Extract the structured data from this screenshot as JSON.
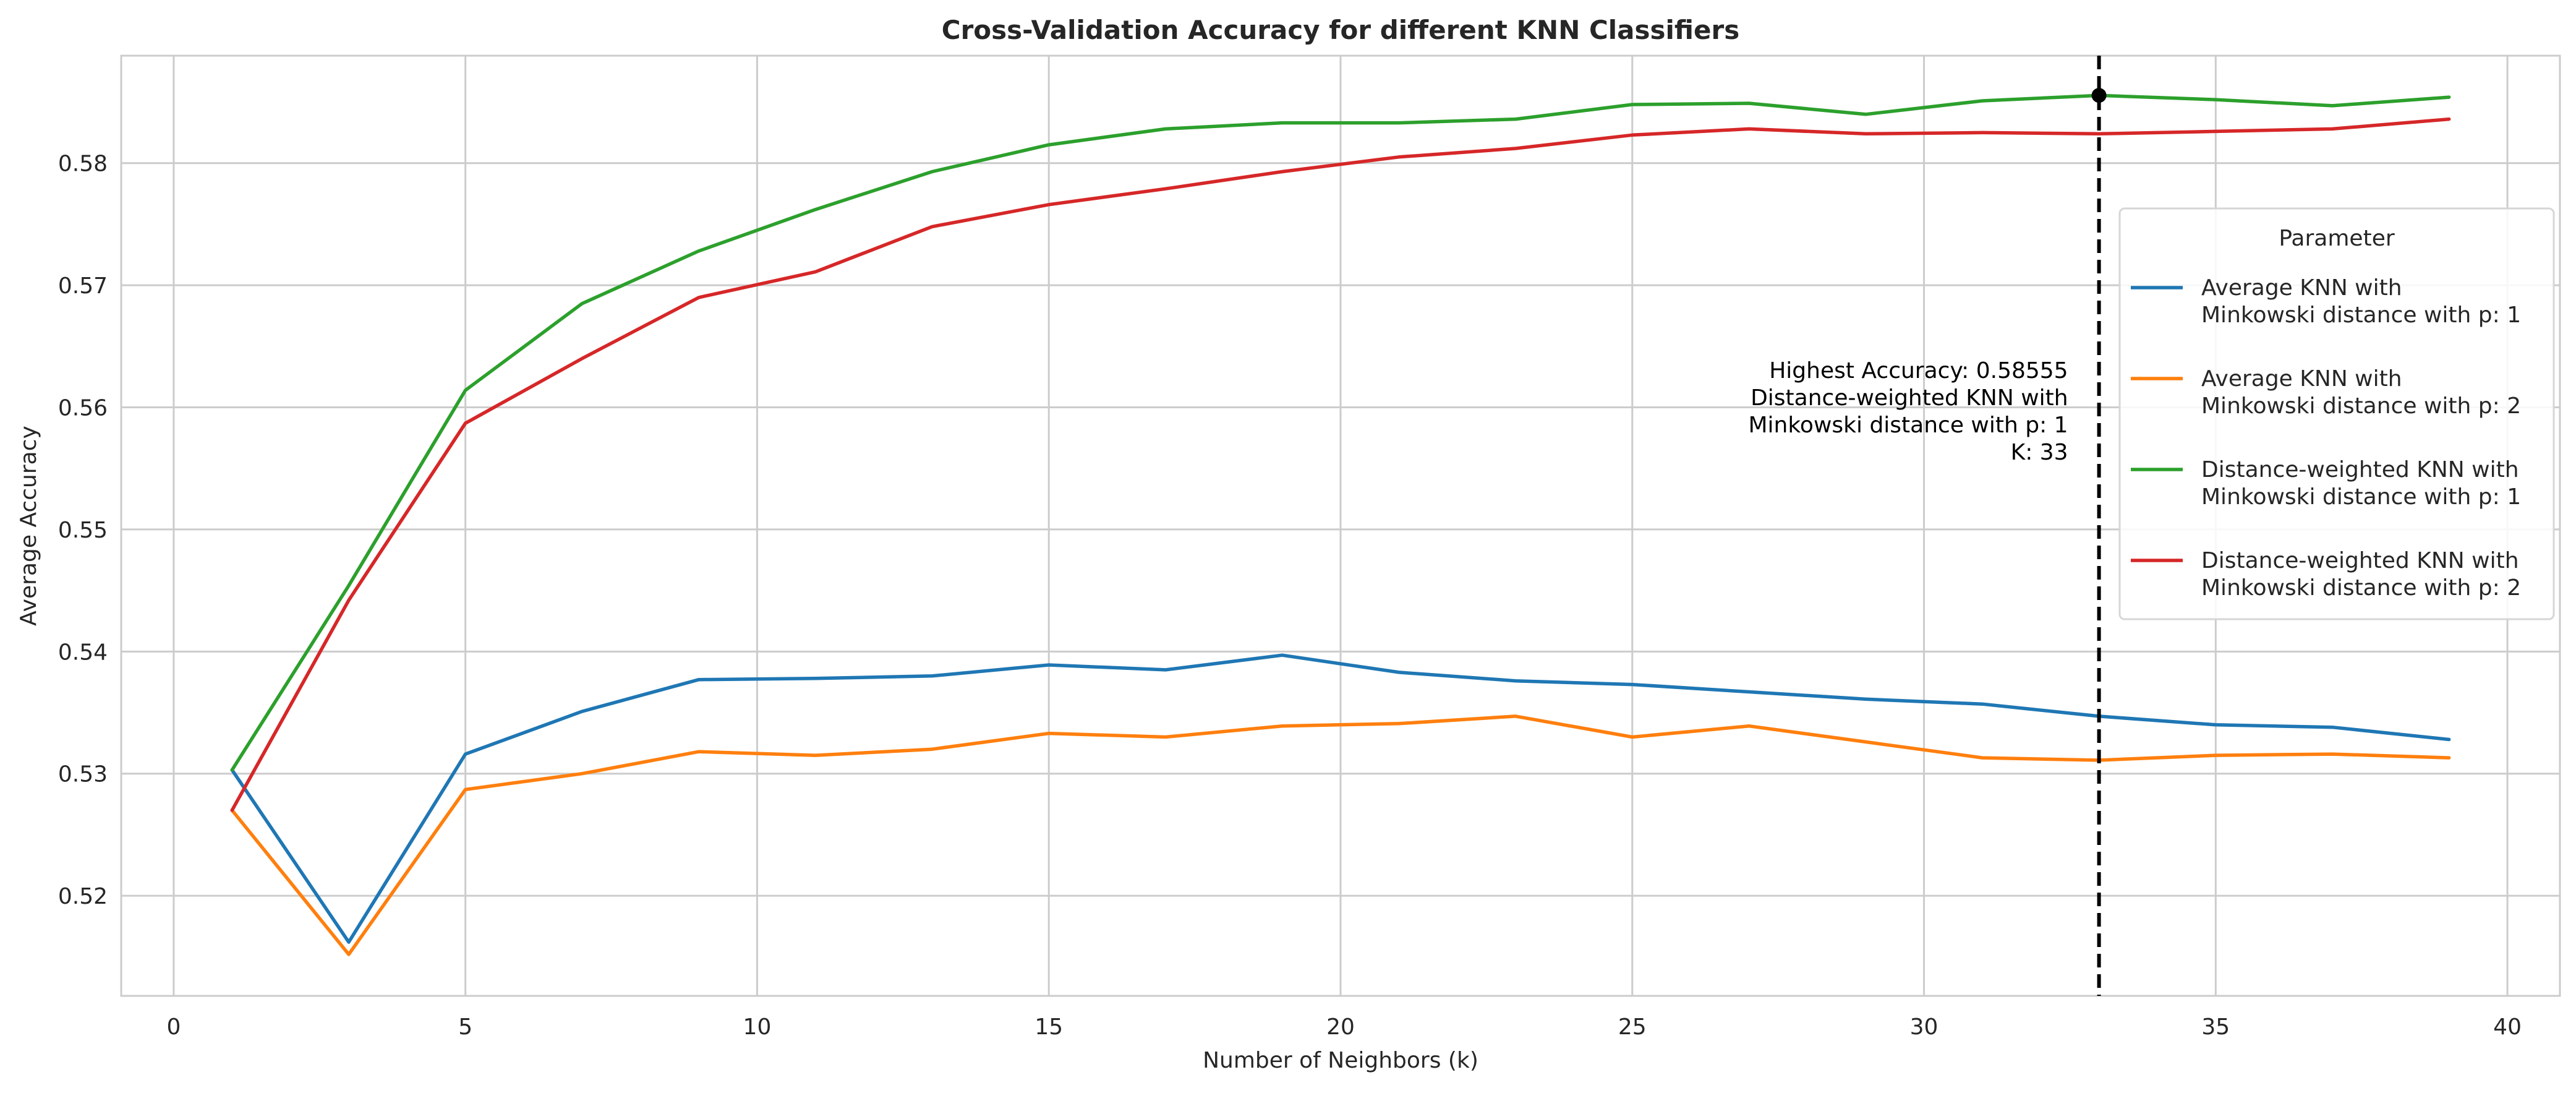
{
  "chart_data": {
    "type": "line",
    "title": "Cross-Validation Accuracy for different KNN Classifiers",
    "xlabel": "Number of Neighbors (k)",
    "ylabel": "Average Accuracy",
    "xlim": [
      -0.9,
      40.9
    ],
    "ylim": [
      0.5118,
      0.5888
    ],
    "xticks": [
      0,
      5,
      10,
      15,
      20,
      25,
      30,
      35,
      40
    ],
    "yticks": [
      0.52,
      0.53,
      0.54,
      0.55,
      0.56,
      0.57,
      0.58
    ],
    "x": [
      1,
      3,
      5,
      7,
      9,
      11,
      13,
      15,
      17,
      19,
      21,
      23,
      25,
      27,
      29,
      31,
      33,
      35,
      37,
      39
    ],
    "series": [
      {
        "name": "Average KNN with\nMinkowski distance with p: 1",
        "color": "#1f77b4",
        "values": [
          0.5303,
          0.5162,
          0.5316,
          0.5351,
          0.5377,
          0.5378,
          0.538,
          0.5389,
          0.5385,
          0.5397,
          0.5383,
          0.5376,
          0.5373,
          0.5367,
          0.5361,
          0.5357,
          0.5347,
          0.534,
          0.5338,
          0.5328
        ]
      },
      {
        "name": "Average KNN with\nMinkowski distance with p: 2",
        "color": "#ff7f0e",
        "values": [
          0.527,
          0.5152,
          0.5287,
          0.53,
          0.5318,
          0.5315,
          0.532,
          0.5333,
          0.533,
          0.5339,
          0.5341,
          0.5347,
          0.533,
          0.5339,
          0.5326,
          0.5313,
          0.5311,
          0.5315,
          0.5316,
          0.5313
        ]
      },
      {
        "name": "Distance-weighted KNN with\nMinkowski distance with p: 1",
        "color": "#2ca02c",
        "values": [
          0.5303,
          0.5454,
          0.5614,
          0.5685,
          0.5728,
          0.5762,
          0.5793,
          0.5815,
          0.5828,
          0.5833,
          0.5833,
          0.5836,
          0.5848,
          0.5849,
          0.584,
          0.5851,
          0.58555,
          0.5852,
          0.5847,
          0.5854
        ]
      },
      {
        "name": "Distance-weighted KNN with\nMinkowski distance with p: 2",
        "color": "#d62728",
        "values": [
          0.527,
          0.5442,
          0.5587,
          0.564,
          0.569,
          0.5711,
          0.5748,
          0.5766,
          0.5779,
          0.5793,
          0.5805,
          0.5812,
          0.5823,
          0.5828,
          0.5824,
          0.5825,
          0.5824,
          0.5826,
          0.5828,
          0.5836
        ]
      }
    ],
    "legend": {
      "title": "Parameter",
      "placement": "right"
    },
    "vline": {
      "x": 33,
      "style": "dashed",
      "color": "#000000"
    },
    "highlight_point": {
      "x": 33,
      "y": 0.58555,
      "color": "#000000"
    },
    "annotation": {
      "lines": [
        "Highest Accuracy: 0.58555",
        "Distance-weighted KNN with",
        "Minkowski distance with p: 1",
        "K: 33"
      ]
    },
    "grid": true
  }
}
